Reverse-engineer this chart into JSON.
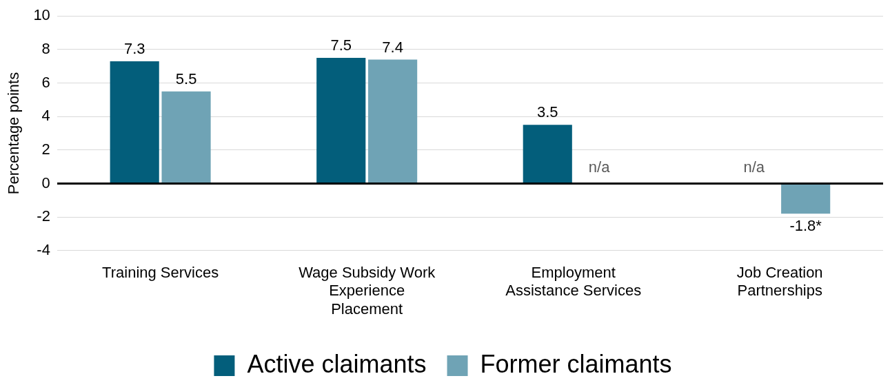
{
  "chart_data": {
    "type": "bar",
    "ylabel": "Percentage points",
    "categories": [
      "Training Services",
      "Wage Subsidy Work Experience Placement",
      "Employment Assistance Services",
      "Job Creation Partnerships"
    ],
    "series": [
      {
        "name": "Active claimants",
        "color": "#035e7b",
        "values": [
          7.3,
          7.5,
          3.5,
          null
        ],
        "value_labels": [
          "7.3",
          "7.5",
          "3.5",
          "n/a"
        ]
      },
      {
        "name": "Former claimants",
        "color": "#6fa3b5",
        "values": [
          5.5,
          7.4,
          null,
          -1.8
        ],
        "value_labels": [
          "5.5",
          "7.4",
          "n/a",
          "-1.8*"
        ]
      }
    ],
    "ylim": [
      -4,
      10
    ],
    "yticks": [
      -4,
      -2,
      0,
      2,
      4,
      6,
      8,
      10
    ],
    "grid": "y",
    "legend": "bottom"
  }
}
